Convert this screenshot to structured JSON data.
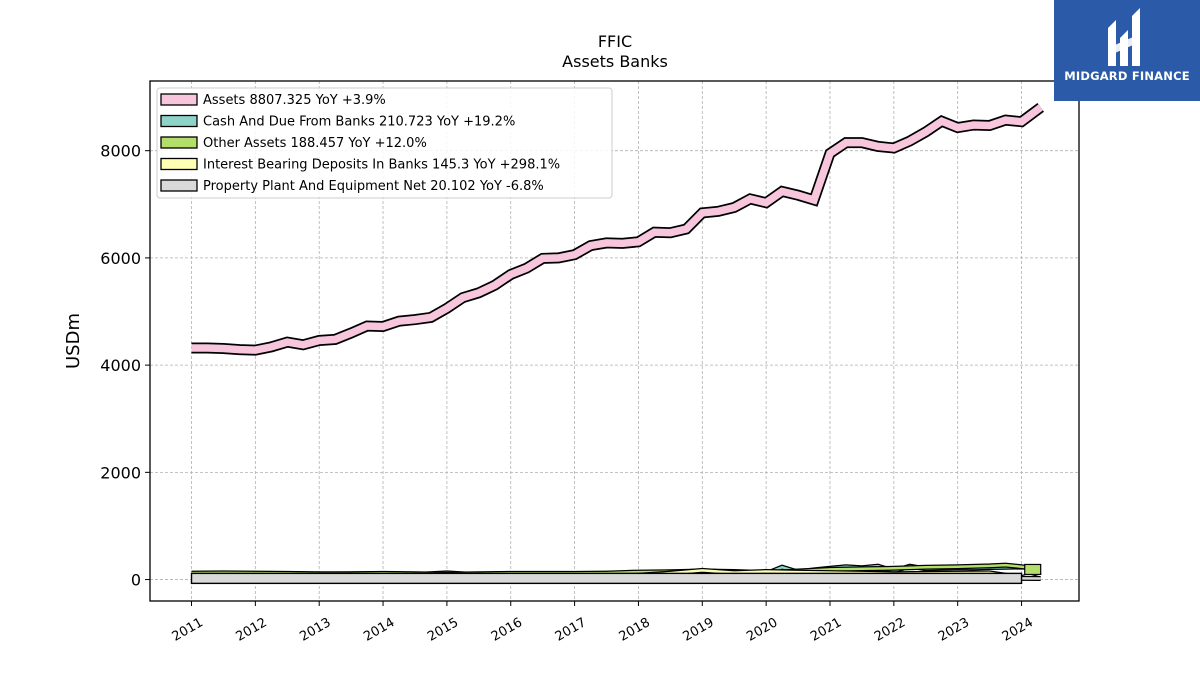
{
  "chart_data": {
    "type": "area",
    "title": "FFIC",
    "subtitle": "Assets Banks",
    "ylabel": "USDm",
    "xlabel": "",
    "ylim": [
      -400,
      9300
    ],
    "xlim": [
      2010.35,
      2024.9
    ],
    "yticks": [
      0,
      2000,
      4000,
      6000,
      8000
    ],
    "xticks": [
      "2011",
      "2012",
      "2013",
      "2014",
      "2015",
      "2016",
      "2017",
      "2018",
      "2019",
      "2020",
      "2021",
      "2022",
      "2023",
      "2024"
    ],
    "grid": true,
    "legend_position": "upper-left",
    "series": [
      {
        "name": "Assets",
        "legend_label": "Assets  8807.325 YoY +3.9%",
        "color": "#f7c6dc",
        "x": [
          2011.0,
          2011.25,
          2011.5,
          2011.75,
          2012.0,
          2012.25,
          2012.5,
          2012.75,
          2013.0,
          2013.25,
          2013.5,
          2013.75,
          2014.0,
          2014.25,
          2014.5,
          2014.75,
          2015.0,
          2015.25,
          2015.5,
          2015.75,
          2016.0,
          2016.25,
          2016.5,
          2016.75,
          2017.0,
          2017.25,
          2017.5,
          2017.75,
          2018.0,
          2018.25,
          2018.5,
          2018.75,
          2019.0,
          2019.25,
          2019.5,
          2019.75,
          2020.0,
          2020.25,
          2020.5,
          2020.75,
          2021.0,
          2021.25,
          2021.5,
          2021.75,
          2022.0,
          2022.25,
          2022.5,
          2022.75,
          2023.0,
          2023.25,
          2023.5,
          2023.75,
          2024.0,
          2024.3
        ],
        "values": [
          4320,
          4320,
          4310,
          4290,
          4280,
          4340,
          4430,
          4380,
          4460,
          4480,
          4600,
          4730,
          4720,
          4820,
          4850,
          4890,
          5060,
          5260,
          5350,
          5490,
          5690,
          5810,
          5990,
          6000,
          6060,
          6230,
          6280,
          6270,
          6300,
          6480,
          6470,
          6540,
          6840,
          6870,
          6940,
          7100,
          7030,
          7240,
          7170,
          7080,
          7950,
          8150,
          8150,
          8080,
          8050,
          8180,
          8350,
          8550,
          8430,
          8480,
          8470,
          8570,
          8540,
          8807.325
        ]
      },
      {
        "name": "Cash And Due From Banks",
        "legend_label": "Cash And Due From Banks  210.723 YoY +19.2%",
        "color": "#8dd3c7",
        "x": [
          2011.0,
          2011.5,
          2012.0,
          2012.5,
          2013.0,
          2013.5,
          2014.0,
          2014.5,
          2015.0,
          2015.5,
          2016.0,
          2016.5,
          2017.0,
          2017.5,
          2018.0,
          2018.5,
          2019.0,
          2019.5,
          2020.0,
          2020.25,
          2020.5,
          2020.75,
          2021.0,
          2021.25,
          2021.5,
          2021.75,
          2022.0,
          2022.25,
          2022.5,
          2022.75,
          2023.0,
          2023.25,
          2023.5,
          2023.75,
          2024.0,
          2024.3
        ],
        "values": [
          110,
          100,
          105,
          95,
          100,
          105,
          110,
          95,
          125,
          90,
          105,
          100,
          110,
          115,
          120,
          110,
          135,
          120,
          110,
          230,
          140,
          180,
          210,
          240,
          220,
          250,
          160,
          250,
          200,
          210,
          220,
          215,
          225,
          230,
          235,
          210.723
        ]
      },
      {
        "name": "Other Assets",
        "legend_label": "Other Assets  188.457 YoY +12.0%",
        "color": "#b3de69",
        "x": [
          2011.0,
          2011.5,
          2012.0,
          2012.5,
          2013.0,
          2013.5,
          2014.0,
          2014.5,
          2015.0,
          2015.5,
          2016.0,
          2016.5,
          2017.0,
          2017.5,
          2018.0,
          2018.5,
          2019.0,
          2019.5,
          2020.0,
          2020.5,
          2021.0,
          2021.5,
          2022.0,
          2022.5,
          2023.0,
          2023.5,
          2023.75,
          2024.0,
          2024.3
        ],
        "values": [
          120,
          125,
          120,
          115,
          110,
          110,
          115,
          110,
          100,
          110,
          115,
          115,
          115,
          120,
          140,
          145,
          160,
          150,
          130,
          160,
          190,
          200,
          210,
          230,
          240,
          255,
          270,
          240,
          188.457
        ]
      },
      {
        "name": "Interest Bearing Deposits In Banks",
        "legend_label": "Interest Bearing Deposits In Banks  145.3 YoY +298.1%",
        "color": "#ffffb3",
        "x": [
          2011.0,
          2012.0,
          2013.0,
          2014.0,
          2015.0,
          2016.0,
          2017.0,
          2018.0,
          2018.5,
          2019.0,
          2019.5,
          2020.0,
          2020.5,
          2021.0,
          2021.5,
          2022.0,
          2022.5,
          2023.0,
          2023.5,
          2024.0,
          2024.3
        ],
        "values": [
          60,
          70,
          60,
          50,
          40,
          55,
          60,
          80,
          120,
          170,
          130,
          150,
          140,
          130,
          120,
          110,
          115,
          120,
          125,
          36,
          145.3
        ]
      },
      {
        "name": "Property Plant And Equipment Net",
        "legend_label": "Property Plant And Equipment Net  20.102 YoY -6.8%",
        "color": "#d9d9d9",
        "x": [
          2011.0,
          2012.0,
          2013.0,
          2014.0,
          2015.0,
          2016.0,
          2017.0,
          2018.0,
          2019.0,
          2020.0,
          2021.0,
          2022.0,
          2023.0,
          2024.0,
          2024.3
        ],
        "values": [
          22,
          22,
          21,
          21,
          20,
          21,
          21,
          22,
          22,
          22,
          22,
          21,
          21,
          21,
          20.102
        ]
      }
    ]
  },
  "logo": {
    "text": "MIDGARD FINANCE",
    "color": "#2a5aa8"
  }
}
